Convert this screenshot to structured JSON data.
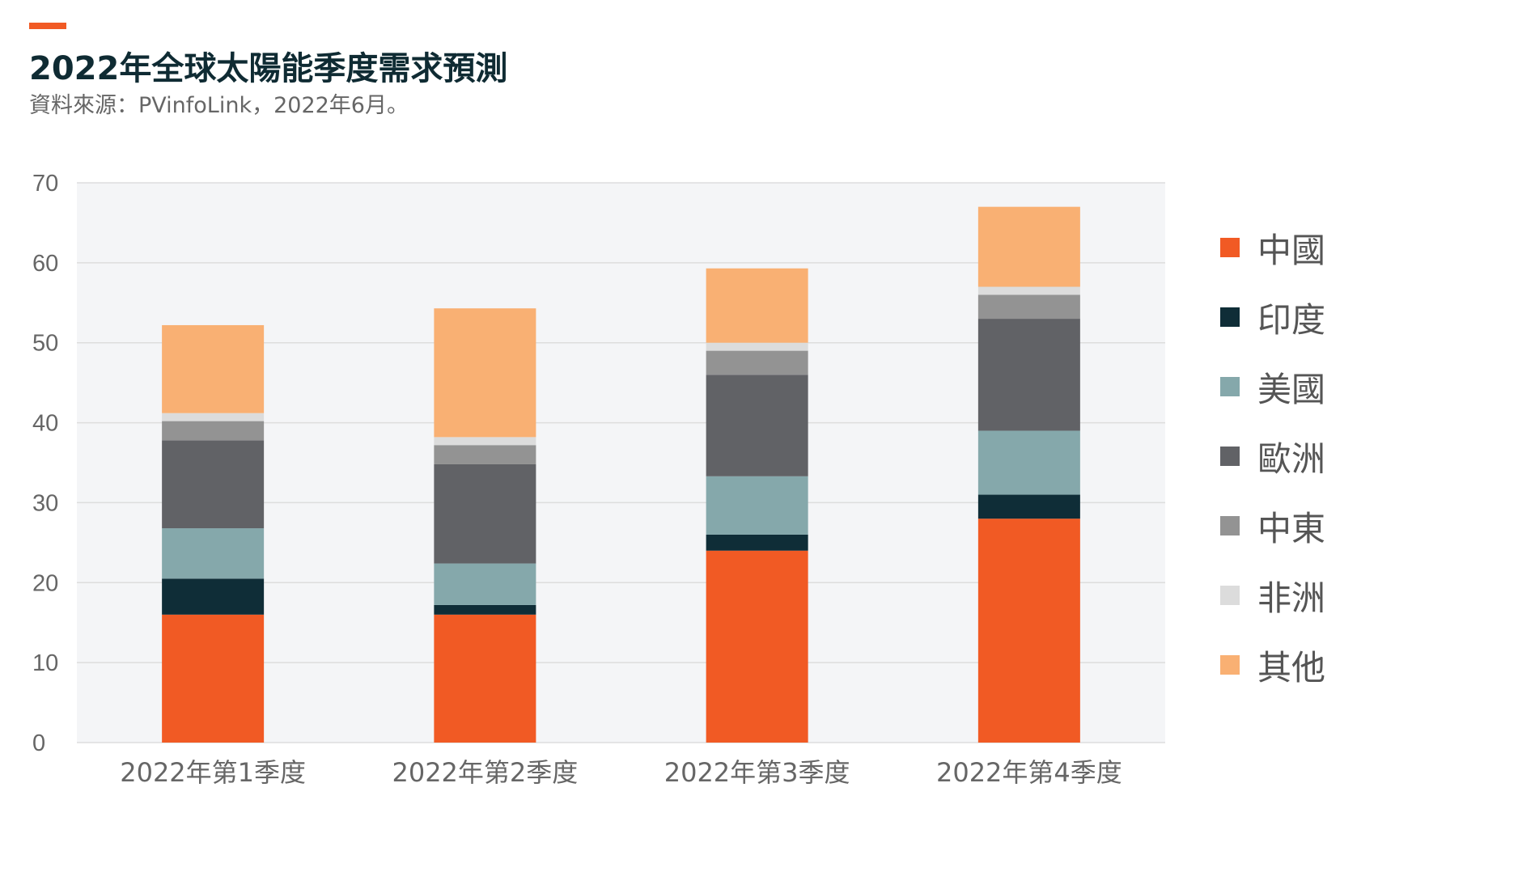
{
  "header": {
    "title": "2022年全球太陽能季度需求預測",
    "source": "資料來源：PVinfoLink，2022年6月。"
  },
  "colors": {
    "accent": "#f15a24",
    "plot_background": "#f4f5f7",
    "gridline": "#dddddd",
    "axis_text": "#666666"
  },
  "chart_data": {
    "type": "bar",
    "stacked": true,
    "categories": [
      "2022年第1季度",
      "2022年第2季度",
      "2022年第3季度",
      "2022年第4季度"
    ],
    "series": [
      {
        "name": "中國",
        "color": "#f15a24",
        "values": [
          16.0,
          16.0,
          24.0,
          28.0
        ]
      },
      {
        "name": "印度",
        "color": "#0f2d37",
        "values": [
          4.5,
          1.2,
          2.0,
          3.0
        ]
      },
      {
        "name": "美國",
        "color": "#85a8ab",
        "values": [
          6.3,
          5.2,
          7.3,
          8.0
        ]
      },
      {
        "name": "歐洲",
        "color": "#616266",
        "values": [
          11.0,
          12.4,
          12.7,
          14.0
        ]
      },
      {
        "name": "中東",
        "color": "#939393",
        "values": [
          2.4,
          2.4,
          3.0,
          3.0
        ]
      },
      {
        "name": "非洲",
        "color": "#dcdcdc",
        "values": [
          1.0,
          1.0,
          1.0,
          1.0
        ]
      },
      {
        "name": "其他",
        "color": "#f9b073",
        "values": [
          11.0,
          16.1,
          9.3,
          10.0
        ]
      }
    ],
    "ylim": [
      0,
      70
    ],
    "yticks": [
      0,
      10,
      20,
      30,
      40,
      50,
      60,
      70
    ],
    "grid": true,
    "legend_position": "right"
  }
}
